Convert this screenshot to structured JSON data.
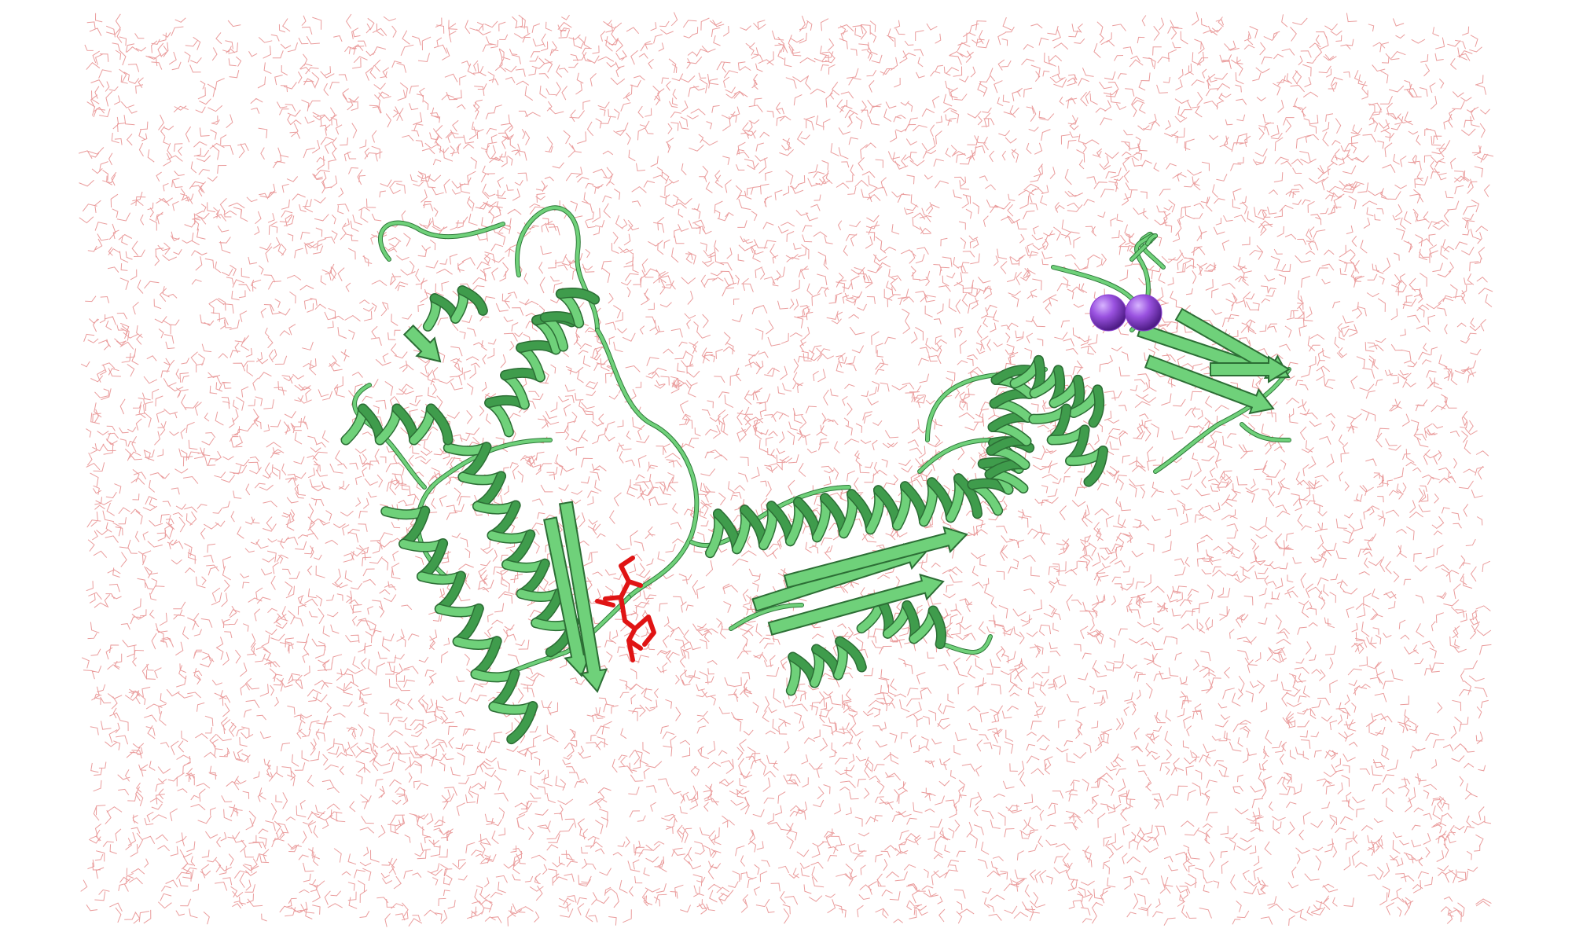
{
  "scene": {
    "background_color": "#ffffff",
    "solvent": {
      "representation": "lines",
      "color": "#e37b7b"
    },
    "protein": {
      "representation": "cartoon",
      "color": "#6fd17a",
      "shade_color": "#3f9c4c"
    },
    "ligand": {
      "representation": "sticks",
      "color": "#e01414"
    },
    "ions": {
      "representation": "spheres",
      "color": "#8a3fd0",
      "count": 2
    }
  }
}
